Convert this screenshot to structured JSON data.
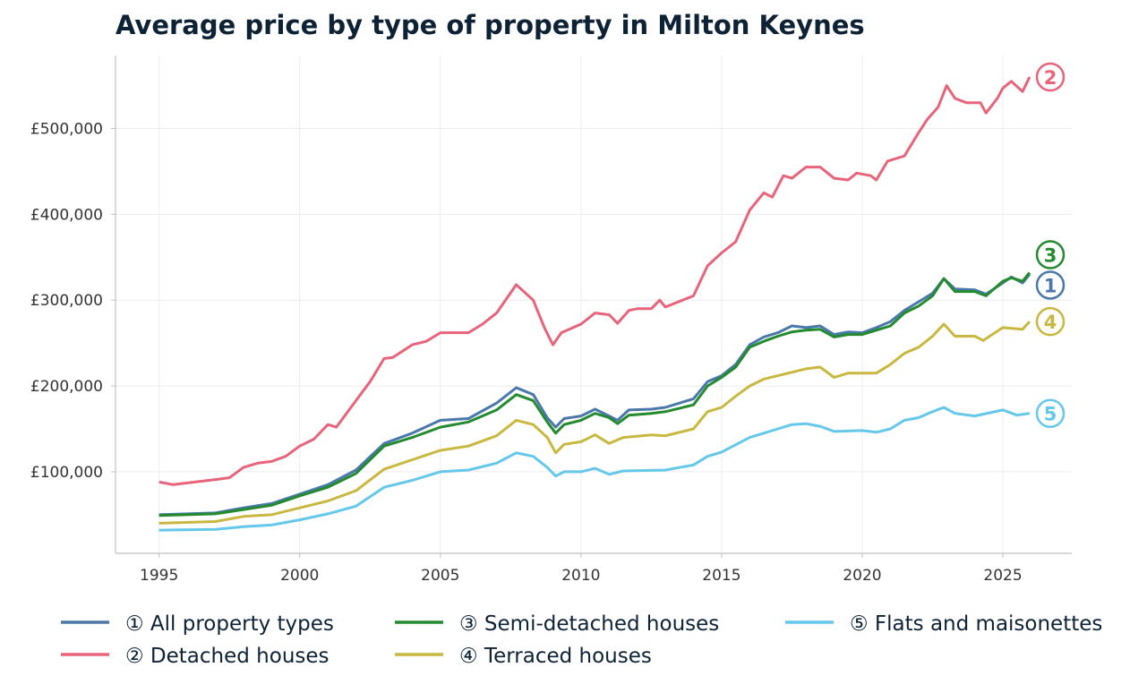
{
  "chart_data": {
    "type": "line",
    "title": "Average price by type of property in Milton Keynes",
    "xlabel": "",
    "ylabel": "",
    "xlim": [
      1993.45,
      2027.45
    ],
    "ylim": [
      5000,
      585000
    ],
    "x_ticks": [
      1995,
      2000,
      2005,
      2010,
      2015,
      2020,
      2025
    ],
    "y_ticks": [
      100000,
      200000,
      300000,
      400000,
      500000
    ],
    "y_tick_labels": [
      "£100,000",
      "£200,000",
      "£300,000",
      "£400,000",
      "£500,000"
    ],
    "grid": true,
    "legend_position": "bottom",
    "series": [
      {
        "name": "① All property types",
        "marker": "1",
        "color": "#4a78aa",
        "points": [
          [
            1995,
            50000
          ],
          [
            1997,
            52000
          ],
          [
            1998,
            58000
          ],
          [
            1999,
            63000
          ],
          [
            2000,
            74000
          ],
          [
            2001,
            85000
          ],
          [
            2002,
            102000
          ],
          [
            2003,
            133000
          ],
          [
            2004,
            145000
          ],
          [
            2005,
            160000
          ],
          [
            2006,
            162000
          ],
          [
            2007,
            180000
          ],
          [
            2007.7,
            198000
          ],
          [
            2008.3,
            190000
          ],
          [
            2008.8,
            163000
          ],
          [
            2009.1,
            152000
          ],
          [
            2009.4,
            162000
          ],
          [
            2010,
            165000
          ],
          [
            2010.5,
            173000
          ],
          [
            2011,
            165000
          ],
          [
            2011.3,
            160000
          ],
          [
            2011.7,
            172000
          ],
          [
            2012.5,
            173000
          ],
          [
            2013,
            175000
          ],
          [
            2014,
            185000
          ],
          [
            2014.5,
            205000
          ],
          [
            2015,
            212000
          ],
          [
            2015.5,
            225000
          ],
          [
            2016,
            248000
          ],
          [
            2016.5,
            257000
          ],
          [
            2017,
            262000
          ],
          [
            2017.5,
            270000
          ],
          [
            2018,
            268000
          ],
          [
            2018.5,
            270000
          ],
          [
            2019,
            260000
          ],
          [
            2019.5,
            263000
          ],
          [
            2020,
            262000
          ],
          [
            2020.5,
            268000
          ],
          [
            2021,
            275000
          ],
          [
            2021.5,
            288000
          ],
          [
            2022,
            298000
          ],
          [
            2022.5,
            308000
          ],
          [
            2022.9,
            325000
          ],
          [
            2023.3,
            313000
          ],
          [
            2024,
            312000
          ],
          [
            2024.4,
            307000
          ],
          [
            2025,
            320000
          ],
          [
            2025.3,
            327000
          ],
          [
            2025.7,
            320000
          ],
          [
            2025.95,
            330000
          ]
        ]
      },
      {
        "name": "② Detached houses",
        "marker": "2",
        "color": "#e8647a",
        "points": [
          [
            1995,
            88000
          ],
          [
            1995.5,
            85000
          ],
          [
            1996,
            87000
          ],
          [
            1997,
            91000
          ],
          [
            1997.5,
            93000
          ],
          [
            1998,
            105000
          ],
          [
            1998.5,
            110000
          ],
          [
            1999,
            112000
          ],
          [
            1999.5,
            118000
          ],
          [
            2000,
            130000
          ],
          [
            2000.5,
            138000
          ],
          [
            2001,
            155000
          ],
          [
            2001.3,
            152000
          ],
          [
            2002,
            183000
          ],
          [
            2002.5,
            205000
          ],
          [
            2003,
            232000
          ],
          [
            2003.3,
            233000
          ],
          [
            2004,
            248000
          ],
          [
            2004.5,
            252000
          ],
          [
            2005,
            262000
          ],
          [
            2006,
            262000
          ],
          [
            2006.5,
            272000
          ],
          [
            2007,
            285000
          ],
          [
            2007.7,
            318000
          ],
          [
            2008.3,
            300000
          ],
          [
            2008.7,
            268000
          ],
          [
            2009.0,
            248000
          ],
          [
            2009.3,
            262000
          ],
          [
            2010,
            272000
          ],
          [
            2010.5,
            285000
          ],
          [
            2011,
            283000
          ],
          [
            2011.3,
            273000
          ],
          [
            2011.7,
            288000
          ],
          [
            2012,
            290000
          ],
          [
            2012.5,
            290000
          ],
          [
            2012.8,
            300000
          ],
          [
            2013,
            292000
          ],
          [
            2014,
            305000
          ],
          [
            2014.5,
            340000
          ],
          [
            2015,
            355000
          ],
          [
            2015.5,
            368000
          ],
          [
            2016,
            405000
          ],
          [
            2016.5,
            425000
          ],
          [
            2016.8,
            420000
          ],
          [
            2017.2,
            445000
          ],
          [
            2017.5,
            442000
          ],
          [
            2018,
            455000
          ],
          [
            2018.5,
            455000
          ],
          [
            2019,
            442000
          ],
          [
            2019.5,
            440000
          ],
          [
            2019.8,
            448000
          ],
          [
            2020.3,
            445000
          ],
          [
            2020.5,
            440000
          ],
          [
            2020.9,
            462000
          ],
          [
            2021.5,
            468000
          ],
          [
            2022,
            495000
          ],
          [
            2022.3,
            510000
          ],
          [
            2022.7,
            525000
          ],
          [
            2023.0,
            550000
          ],
          [
            2023.3,
            535000
          ],
          [
            2023.7,
            530000
          ],
          [
            2024.2,
            530000
          ],
          [
            2024.4,
            518000
          ],
          [
            2024.8,
            535000
          ],
          [
            2025,
            547000
          ],
          [
            2025.3,
            555000
          ],
          [
            2025.7,
            543000
          ],
          [
            2025.95,
            560000
          ]
        ]
      },
      {
        "name": "③ Semi-detached houses",
        "marker": "3",
        "color": "#238b2e",
        "points": [
          [
            1995,
            49000
          ],
          [
            1997,
            51000
          ],
          [
            1998,
            56000
          ],
          [
            1999,
            61000
          ],
          [
            2000,
            72000
          ],
          [
            2001,
            82000
          ],
          [
            2002,
            98000
          ],
          [
            2003,
            130000
          ],
          [
            2004,
            140000
          ],
          [
            2005,
            152000
          ],
          [
            2006,
            158000
          ],
          [
            2007,
            172000
          ],
          [
            2007.7,
            190000
          ],
          [
            2008.3,
            183000
          ],
          [
            2008.8,
            158000
          ],
          [
            2009.1,
            145000
          ],
          [
            2009.4,
            155000
          ],
          [
            2010,
            160000
          ],
          [
            2010.5,
            168000
          ],
          [
            2011,
            163000
          ],
          [
            2011.3,
            156000
          ],
          [
            2011.7,
            166000
          ],
          [
            2012.5,
            168000
          ],
          [
            2013,
            170000
          ],
          [
            2014,
            178000
          ],
          [
            2014.5,
            200000
          ],
          [
            2015,
            210000
          ],
          [
            2015.5,
            222000
          ],
          [
            2016,
            245000
          ],
          [
            2016.5,
            252000
          ],
          [
            2017,
            258000
          ],
          [
            2017.5,
            263000
          ],
          [
            2018,
            265000
          ],
          [
            2018.5,
            266000
          ],
          [
            2019,
            257000
          ],
          [
            2019.5,
            260000
          ],
          [
            2020,
            260000
          ],
          [
            2020.5,
            265000
          ],
          [
            2021,
            270000
          ],
          [
            2021.5,
            285000
          ],
          [
            2022,
            293000
          ],
          [
            2022.5,
            305000
          ],
          [
            2022.9,
            325000
          ],
          [
            2023.3,
            310000
          ],
          [
            2024,
            310000
          ],
          [
            2024.4,
            305000
          ],
          [
            2025,
            322000
          ],
          [
            2025.3,
            326000
          ],
          [
            2025.7,
            322000
          ],
          [
            2025.95,
            332000
          ]
        ]
      },
      {
        "name": "④ Terraced houses",
        "marker": "4",
        "color": "#c9b840",
        "points": [
          [
            1995,
            40000
          ],
          [
            1997,
            42000
          ],
          [
            1998,
            48000
          ],
          [
            1999,
            50000
          ],
          [
            2000,
            58000
          ],
          [
            2001,
            66000
          ],
          [
            2002,
            78000
          ],
          [
            2003,
            103000
          ],
          [
            2004,
            114000
          ],
          [
            2005,
            125000
          ],
          [
            2006,
            130000
          ],
          [
            2007,
            142000
          ],
          [
            2007.7,
            160000
          ],
          [
            2008.3,
            155000
          ],
          [
            2008.8,
            140000
          ],
          [
            2009.1,
            122000
          ],
          [
            2009.4,
            132000
          ],
          [
            2010,
            135000
          ],
          [
            2010.5,
            143000
          ],
          [
            2011,
            133000
          ],
          [
            2011.5,
            140000
          ],
          [
            2012.5,
            143000
          ],
          [
            2013,
            142000
          ],
          [
            2014,
            150000
          ],
          [
            2014.5,
            170000
          ],
          [
            2015,
            175000
          ],
          [
            2015.5,
            188000
          ],
          [
            2016,
            200000
          ],
          [
            2016.5,
            208000
          ],
          [
            2017,
            212000
          ],
          [
            2018,
            220000
          ],
          [
            2018.5,
            222000
          ],
          [
            2019,
            210000
          ],
          [
            2019.5,
            215000
          ],
          [
            2020,
            215000
          ],
          [
            2020.5,
            215000
          ],
          [
            2021,
            225000
          ],
          [
            2021.5,
            238000
          ],
          [
            2022,
            245000
          ],
          [
            2022.5,
            258000
          ],
          [
            2022.9,
            272000
          ],
          [
            2023.3,
            258000
          ],
          [
            2024,
            258000
          ],
          [
            2024.3,
            253000
          ],
          [
            2025,
            268000
          ],
          [
            2025.7,
            266000
          ],
          [
            2025.95,
            275000
          ]
        ]
      },
      {
        "name": "⑤ Flats and maisonettes",
        "marker": "5",
        "color": "#64c8ea",
        "points": [
          [
            1995,
            32000
          ],
          [
            1997,
            33000
          ],
          [
            1998,
            36000
          ],
          [
            1999,
            38000
          ],
          [
            2000,
            44000
          ],
          [
            2001,
            51000
          ],
          [
            2002,
            60000
          ],
          [
            2003,
            82000
          ],
          [
            2004,
            90000
          ],
          [
            2005,
            100000
          ],
          [
            2006,
            102000
          ],
          [
            2007,
            110000
          ],
          [
            2007.7,
            122000
          ],
          [
            2008.3,
            118000
          ],
          [
            2008.8,
            105000
          ],
          [
            2009.1,
            95000
          ],
          [
            2009.4,
            100000
          ],
          [
            2010,
            100000
          ],
          [
            2010.5,
            104000
          ],
          [
            2011,
            97000
          ],
          [
            2011.5,
            101000
          ],
          [
            2013,
            102000
          ],
          [
            2014,
            108000
          ],
          [
            2014.5,
            118000
          ],
          [
            2015,
            123000
          ],
          [
            2016,
            140000
          ],
          [
            2016.5,
            145000
          ],
          [
            2017,
            150000
          ],
          [
            2017.5,
            155000
          ],
          [
            2018,
            156000
          ],
          [
            2018.5,
            153000
          ],
          [
            2019,
            147000
          ],
          [
            2020,
            148000
          ],
          [
            2020.5,
            146000
          ],
          [
            2021,
            150000
          ],
          [
            2021.5,
            160000
          ],
          [
            2022,
            163000
          ],
          [
            2022.5,
            170000
          ],
          [
            2022.9,
            175000
          ],
          [
            2023.3,
            168000
          ],
          [
            2024,
            165000
          ],
          [
            2025,
            172000
          ],
          [
            2025.5,
            166000
          ],
          [
            2025.95,
            168000
          ]
        ]
      }
    ]
  },
  "colors": {
    "title": "#0d2235",
    "axis": "#c0c0c0",
    "grid": "#ececec",
    "tick_text": "#333333"
  }
}
